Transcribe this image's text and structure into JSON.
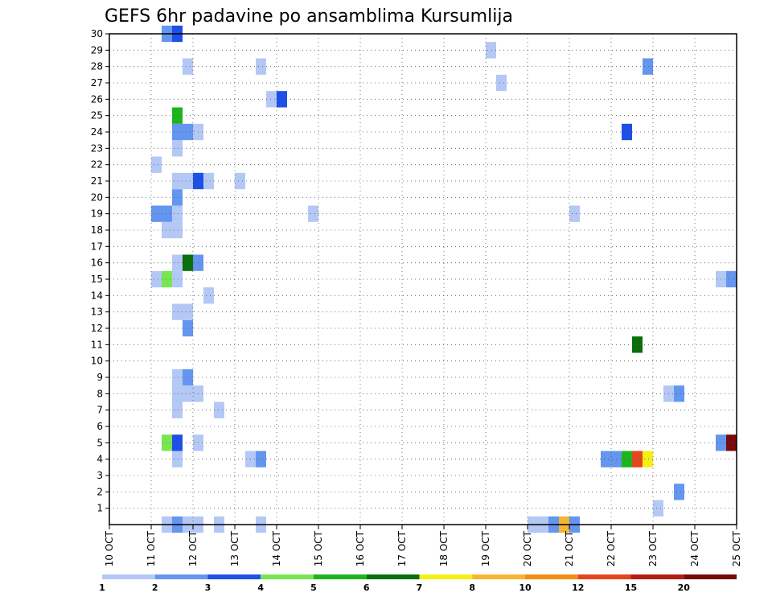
{
  "chart_data": {
    "type": "heatmap",
    "title": "GEFS 6hr padavine po ansamblima Kursumlija",
    "x_ticks": [
      "10 OCT",
      "11 OCT",
      "12 OCT",
      "13 OCT",
      "14 OCT",
      "15 OCT",
      "16 OCT",
      "17 OCT",
      "18 OCT",
      "19 OCT",
      "20 OCT",
      "21 OCT",
      "22 OCT",
      "23 OCT",
      "24 OCT",
      "25 OCT"
    ],
    "y_ticks": [
      "1",
      "2",
      "3",
      "4",
      "5",
      "6",
      "7",
      "8",
      "9",
      "10",
      "11",
      "12",
      "13",
      "14",
      "15",
      "16",
      "17",
      "18",
      "19",
      "20",
      "21",
      "22",
      "23",
      "24",
      "25",
      "26",
      "27",
      "28",
      "29",
      "30"
    ],
    "x_range": [
      0,
      60
    ],
    "y_range": [
      0,
      30
    ],
    "x_unit": "6-hour step from 10 OCT 00Z",
    "grid": true,
    "colorbar": {
      "labels": [
        "1",
        "2",
        "3",
        "4",
        "5",
        "6",
        "7",
        "8",
        "10",
        "12",
        "15",
        "20"
      ],
      "colors": [
        "#b4c8f5",
        "#6496f0",
        "#1e50e6",
        "#78e650",
        "#1eb41e",
        "#0a6e0a",
        "#f5f014",
        "#f5b432",
        "#f58c14",
        "#e6461e",
        "#b41e14",
        "#780a0a"
      ]
    },
    "cells": [
      {
        "x": 5,
        "y": 0,
        "v": 1
      },
      {
        "x": 6,
        "y": 0,
        "v": 2
      },
      {
        "x": 7,
        "y": 0,
        "v": 1
      },
      {
        "x": 8,
        "y": 0,
        "v": 1
      },
      {
        "x": 10,
        "y": 0,
        "v": 1
      },
      {
        "x": 14,
        "y": 0,
        "v": 1
      },
      {
        "x": 40,
        "y": 0,
        "v": 1
      },
      {
        "x": 41,
        "y": 0,
        "v": 1
      },
      {
        "x": 42,
        "y": 0,
        "v": 2
      },
      {
        "x": 43,
        "y": 0,
        "v": 8
      },
      {
        "x": 44,
        "y": 0,
        "v": 2
      },
      {
        "x": 52,
        "y": 1,
        "v": 1
      },
      {
        "x": 54,
        "y": 2,
        "v": 2
      },
      {
        "x": 47,
        "y": 4,
        "v": 2
      },
      {
        "x": 48,
        "y": 4,
        "v": 2
      },
      {
        "x": 49,
        "y": 4,
        "v": 5
      },
      {
        "x": 50,
        "y": 4,
        "v": 12
      },
      {
        "x": 51,
        "y": 4,
        "v": 7
      },
      {
        "x": 6,
        "y": 4,
        "v": 1
      },
      {
        "x": 13,
        "y": 4,
        "v": 1
      },
      {
        "x": 14,
        "y": 4,
        "v": 2
      },
      {
        "x": 5,
        "y": 5,
        "v": 4
      },
      {
        "x": 6,
        "y": 5,
        "v": 3
      },
      {
        "x": 8,
        "y": 5,
        "v": 1
      },
      {
        "x": 58,
        "y": 5,
        "v": 2
      },
      {
        "x": 59,
        "y": 5,
        "v": 20
      },
      {
        "x": 6,
        "y": 7,
        "v": 1
      },
      {
        "x": 10,
        "y": 7,
        "v": 1
      },
      {
        "x": 6,
        "y": 8,
        "v": 1
      },
      {
        "x": 7,
        "y": 8,
        "v": 1
      },
      {
        "x": 8,
        "y": 8,
        "v": 1
      },
      {
        "x": 53,
        "y": 8,
        "v": 1
      },
      {
        "x": 54,
        "y": 8,
        "v": 2
      },
      {
        "x": 6,
        "y": 9,
        "v": 1
      },
      {
        "x": 7,
        "y": 9,
        "v": 2
      },
      {
        "x": 50,
        "y": 11,
        "v": 6
      },
      {
        "x": 7,
        "y": 12,
        "v": 2
      },
      {
        "x": 6,
        "y": 13,
        "v": 1
      },
      {
        "x": 7,
        "y": 13,
        "v": 1
      },
      {
        "x": 9,
        "y": 14,
        "v": 1
      },
      {
        "x": 4,
        "y": 15,
        "v": 1
      },
      {
        "x": 5,
        "y": 15,
        "v": 4
      },
      {
        "x": 6,
        "y": 15,
        "v": 1
      },
      {
        "x": 58,
        "y": 15,
        "v": 1
      },
      {
        "x": 59,
        "y": 15,
        "v": 2
      },
      {
        "x": 7,
        "y": 16,
        "v": 6
      },
      {
        "x": 8,
        "y": 16,
        "v": 2
      },
      {
        "x": 6,
        "y": 16,
        "v": 1
      },
      {
        "x": 5,
        "y": 18,
        "v": 1
      },
      {
        "x": 6,
        "y": 18,
        "v": 1
      },
      {
        "x": 4,
        "y": 19,
        "v": 2
      },
      {
        "x": 5,
        "y": 19,
        "v": 2
      },
      {
        "x": 6,
        "y": 19,
        "v": 1
      },
      {
        "x": 19,
        "y": 19,
        "v": 1
      },
      {
        "x": 44,
        "y": 19,
        "v": 1
      },
      {
        "x": 6,
        "y": 20,
        "v": 2
      },
      {
        "x": 6,
        "y": 21,
        "v": 1
      },
      {
        "x": 7,
        "y": 21,
        "v": 1
      },
      {
        "x": 8,
        "y": 21,
        "v": 3
      },
      {
        "x": 9,
        "y": 21,
        "v": 1
      },
      {
        "x": 12,
        "y": 21,
        "v": 1
      },
      {
        "x": 4,
        "y": 22,
        "v": 1
      },
      {
        "x": 6,
        "y": 23,
        "v": 1
      },
      {
        "x": 6,
        "y": 24,
        "v": 2
      },
      {
        "x": 7,
        "y": 24,
        "v": 2
      },
      {
        "x": 8,
        "y": 24,
        "v": 1
      },
      {
        "x": 49,
        "y": 24,
        "v": 3
      },
      {
        "x": 6,
        "y": 25,
        "v": 5
      },
      {
        "x": 15,
        "y": 26,
        "v": 1
      },
      {
        "x": 16,
        "y": 26,
        "v": 3
      },
      {
        "x": 37,
        "y": 27,
        "v": 1
      },
      {
        "x": 7,
        "y": 28,
        "v": 1
      },
      {
        "x": 14,
        "y": 28,
        "v": 1
      },
      {
        "x": 51,
        "y": 28,
        "v": 2
      },
      {
        "x": 36,
        "y": 29,
        "v": 1
      },
      {
        "x": 5,
        "y": 30,
        "v": 2
      },
      {
        "x": 6,
        "y": 30,
        "v": 3
      }
    ]
  }
}
